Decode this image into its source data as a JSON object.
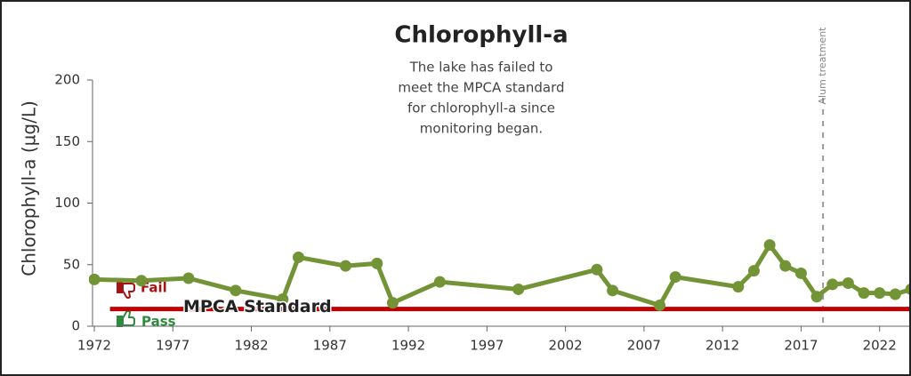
{
  "chart_data": {
    "type": "line",
    "title": "Chlorophyll-a",
    "annotation": [
      "The lake has failed to",
      "meet the MPCA standard",
      "for chlorophyll-a since",
      "monitoring began."
    ],
    "y_label": "Chlorophyll-a  (µg/L)",
    "x": [
      1972,
      1975,
      1978,
      1981,
      1984,
      1985,
      1988,
      1990,
      1991,
      1994,
      1999,
      2004,
      2005,
      2008,
      2009,
      2013,
      2014,
      2015,
      2016,
      2017,
      2018,
      2019,
      2020,
      2021,
      2022,
      2023,
      2024
    ],
    "series": [
      {
        "color": "#739436",
        "values": [
          38,
          37,
          39,
          29,
          22,
          56,
          49,
          51,
          19,
          36,
          30,
          46,
          29,
          17,
          40,
          32,
          45,
          66,
          49,
          43,
          24,
          34,
          35,
          27,
          27,
          26,
          30
        ]
      }
    ],
    "xlim": [
      1972,
      2024
    ],
    "xticks": [
      1972,
      1977,
      1982,
      1987,
      1992,
      1997,
      2002,
      2007,
      2012,
      2017,
      2022
    ],
    "ylim": [
      0,
      200
    ],
    "yticks": [
      0,
      50,
      100,
      150,
      200
    ],
    "standard": {
      "label": "MPCA Standard",
      "value": 14,
      "start": 1973,
      "color": "#c00000"
    },
    "fail_label": "Fail",
    "pass_label": "Pass",
    "event": {
      "label": "Alum treatment",
      "x": 2018.4
    }
  }
}
